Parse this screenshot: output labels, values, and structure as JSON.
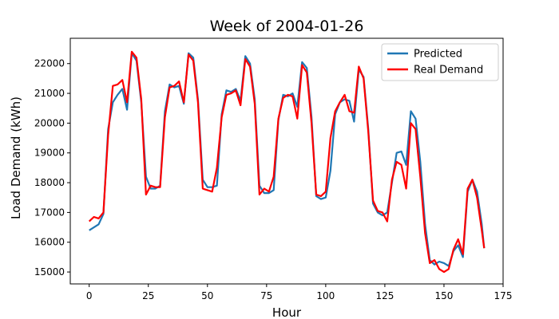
{
  "chart_data": {
    "type": "line",
    "title": "Week of 2004-01-26",
    "xlabel": "Hour",
    "ylabel": "Load Demand (kWh)",
    "xlim": [
      -8,
      175
    ],
    "ylim": [
      14600,
      22850
    ],
    "xticks": [
      0,
      25,
      50,
      75,
      100,
      125,
      150,
      175
    ],
    "yticks": [
      15000,
      16000,
      17000,
      18000,
      19000,
      20000,
      21000,
      22000
    ],
    "grid": false,
    "legend_position": "top-right",
    "series": [
      {
        "name": "Predicted",
        "color": "#1f77b4",
        "values": [
          {
            "x": 0,
            "y": 16400
          },
          {
            "x": 2,
            "y": 16500
          },
          {
            "x": 4,
            "y": 16600
          },
          {
            "x": 6,
            "y": 16950
          },
          {
            "x": 8,
            "y": 19800
          },
          {
            "x": 10,
            "y": 20700
          },
          {
            "x": 12,
            "y": 20950
          },
          {
            "x": 14,
            "y": 21150
          },
          {
            "x": 16,
            "y": 20450
          },
          {
            "x": 18,
            "y": 22350
          },
          {
            "x": 20,
            "y": 22100
          },
          {
            "x": 22,
            "y": 20700
          },
          {
            "x": 24,
            "y": 18200
          },
          {
            "x": 26,
            "y": 17800
          },
          {
            "x": 28,
            "y": 17800
          },
          {
            "x": 30,
            "y": 17900
          },
          {
            "x": 32,
            "y": 20400
          },
          {
            "x": 34,
            "y": 21300
          },
          {
            "x": 36,
            "y": 21200
          },
          {
            "x": 38,
            "y": 21250
          },
          {
            "x": 40,
            "y": 20650
          },
          {
            "x": 42,
            "y": 22350
          },
          {
            "x": 44,
            "y": 22200
          },
          {
            "x": 46,
            "y": 20800
          },
          {
            "x": 48,
            "y": 18100
          },
          {
            "x": 50,
            "y": 17850
          },
          {
            "x": 52,
            "y": 17850
          },
          {
            "x": 54,
            "y": 17900
          },
          {
            "x": 56,
            "y": 20300
          },
          {
            "x": 58,
            "y": 21100
          },
          {
            "x": 60,
            "y": 21050
          },
          {
            "x": 62,
            "y": 21150
          },
          {
            "x": 64,
            "y": 20750
          },
          {
            "x": 66,
            "y": 22250
          },
          {
            "x": 68,
            "y": 22000
          },
          {
            "x": 70,
            "y": 20800
          },
          {
            "x": 72,
            "y": 17900
          },
          {
            "x": 74,
            "y": 17650
          },
          {
            "x": 76,
            "y": 17650
          },
          {
            "x": 78,
            "y": 17750
          },
          {
            "x": 80,
            "y": 20100
          },
          {
            "x": 82,
            "y": 20950
          },
          {
            "x": 84,
            "y": 20900
          },
          {
            "x": 86,
            "y": 21000
          },
          {
            "x": 88,
            "y": 20550
          },
          {
            "x": 90,
            "y": 22050
          },
          {
            "x": 92,
            "y": 21850
          },
          {
            "x": 94,
            "y": 20200
          },
          {
            "x": 96,
            "y": 17550
          },
          {
            "x": 98,
            "y": 17450
          },
          {
            "x": 100,
            "y": 17500
          },
          {
            "x": 102,
            "y": 18400
          },
          {
            "x": 104,
            "y": 20300
          },
          {
            "x": 106,
            "y": 20700
          },
          {
            "x": 108,
            "y": 20800
          },
          {
            "x": 110,
            "y": 20750
          },
          {
            "x": 112,
            "y": 20050
          },
          {
            "x": 114,
            "y": 21800
          },
          {
            "x": 116,
            "y": 21550
          },
          {
            "x": 118,
            "y": 19800
          },
          {
            "x": 120,
            "y": 17300
          },
          {
            "x": 122,
            "y": 17000
          },
          {
            "x": 124,
            "y": 16900
          },
          {
            "x": 126,
            "y": 17000
          },
          {
            "x": 128,
            "y": 18000
          },
          {
            "x": 130,
            "y": 19000
          },
          {
            "x": 132,
            "y": 19050
          },
          {
            "x": 134,
            "y": 18600
          },
          {
            "x": 136,
            "y": 20400
          },
          {
            "x": 138,
            "y": 20150
          },
          {
            "x": 140,
            "y": 18700
          },
          {
            "x": 142,
            "y": 16600
          },
          {
            "x": 144,
            "y": 15400
          },
          {
            "x": 146,
            "y": 15250
          },
          {
            "x": 148,
            "y": 15350
          },
          {
            "x": 150,
            "y": 15300
          },
          {
            "x": 152,
            "y": 15200
          },
          {
            "x": 154,
            "y": 15700
          },
          {
            "x": 156,
            "y": 15900
          },
          {
            "x": 158,
            "y": 15500
          },
          {
            "x": 160,
            "y": 17700
          },
          {
            "x": 162,
            "y": 18100
          },
          {
            "x": 164,
            "y": 17700
          },
          {
            "x": 166,
            "y": 16600
          },
          {
            "x": 167,
            "y": 15800
          }
        ]
      },
      {
        "name": "Real Demand",
        "color": "#ff0000",
        "values": [
          {
            "x": 0,
            "y": 16700
          },
          {
            "x": 2,
            "y": 16850
          },
          {
            "x": 4,
            "y": 16800
          },
          {
            "x": 6,
            "y": 17000
          },
          {
            "x": 8,
            "y": 19600
          },
          {
            "x": 10,
            "y": 21250
          },
          {
            "x": 12,
            "y": 21300
          },
          {
            "x": 14,
            "y": 21450
          },
          {
            "x": 16,
            "y": 20700
          },
          {
            "x": 18,
            "y": 22400
          },
          {
            "x": 20,
            "y": 22200
          },
          {
            "x": 22,
            "y": 20800
          },
          {
            "x": 24,
            "y": 17600
          },
          {
            "x": 26,
            "y": 17900
          },
          {
            "x": 28,
            "y": 17850
          },
          {
            "x": 30,
            "y": 17850
          },
          {
            "x": 32,
            "y": 20200
          },
          {
            "x": 34,
            "y": 21200
          },
          {
            "x": 36,
            "y": 21250
          },
          {
            "x": 38,
            "y": 21400
          },
          {
            "x": 40,
            "y": 20700
          },
          {
            "x": 42,
            "y": 22300
          },
          {
            "x": 44,
            "y": 22100
          },
          {
            "x": 46,
            "y": 20700
          },
          {
            "x": 48,
            "y": 17800
          },
          {
            "x": 50,
            "y": 17750
          },
          {
            "x": 52,
            "y": 17700
          },
          {
            "x": 54,
            "y": 18500
          },
          {
            "x": 56,
            "y": 20200
          },
          {
            "x": 58,
            "y": 20950
          },
          {
            "x": 60,
            "y": 21000
          },
          {
            "x": 62,
            "y": 21100
          },
          {
            "x": 64,
            "y": 20600
          },
          {
            "x": 66,
            "y": 22150
          },
          {
            "x": 68,
            "y": 21900
          },
          {
            "x": 70,
            "y": 20650
          },
          {
            "x": 72,
            "y": 17600
          },
          {
            "x": 74,
            "y": 17800
          },
          {
            "x": 76,
            "y": 17700
          },
          {
            "x": 78,
            "y": 18200
          },
          {
            "x": 80,
            "y": 20150
          },
          {
            "x": 82,
            "y": 20850
          },
          {
            "x": 84,
            "y": 20950
          },
          {
            "x": 86,
            "y": 20900
          },
          {
            "x": 88,
            "y": 20150
          },
          {
            "x": 90,
            "y": 21950
          },
          {
            "x": 92,
            "y": 21700
          },
          {
            "x": 94,
            "y": 20000
          },
          {
            "x": 96,
            "y": 17600
          },
          {
            "x": 98,
            "y": 17550
          },
          {
            "x": 100,
            "y": 17700
          },
          {
            "x": 102,
            "y": 19500
          },
          {
            "x": 104,
            "y": 20400
          },
          {
            "x": 106,
            "y": 20700
          },
          {
            "x": 108,
            "y": 20950
          },
          {
            "x": 110,
            "y": 20400
          },
          {
            "x": 112,
            "y": 20350
          },
          {
            "x": 114,
            "y": 21900
          },
          {
            "x": 116,
            "y": 21500
          },
          {
            "x": 118,
            "y": 19700
          },
          {
            "x": 120,
            "y": 17400
          },
          {
            "x": 122,
            "y": 17050
          },
          {
            "x": 124,
            "y": 17000
          },
          {
            "x": 126,
            "y": 16700
          },
          {
            "x": 128,
            "y": 18100
          },
          {
            "x": 130,
            "y": 18700
          },
          {
            "x": 132,
            "y": 18600
          },
          {
            "x": 134,
            "y": 17800
          },
          {
            "x": 136,
            "y": 20000
          },
          {
            "x": 138,
            "y": 19800
          },
          {
            "x": 140,
            "y": 18200
          },
          {
            "x": 142,
            "y": 16300
          },
          {
            "x": 144,
            "y": 15300
          },
          {
            "x": 146,
            "y": 15400
          },
          {
            "x": 148,
            "y": 15100
          },
          {
            "x": 150,
            "y": 15000
          },
          {
            "x": 152,
            "y": 15100
          },
          {
            "x": 154,
            "y": 15750
          },
          {
            "x": 156,
            "y": 16100
          },
          {
            "x": 158,
            "y": 15600
          },
          {
            "x": 160,
            "y": 17800
          },
          {
            "x": 162,
            "y": 18100
          },
          {
            "x": 164,
            "y": 17500
          },
          {
            "x": 166,
            "y": 16400
          },
          {
            "x": 167,
            "y": 15800
          }
        ]
      }
    ]
  }
}
